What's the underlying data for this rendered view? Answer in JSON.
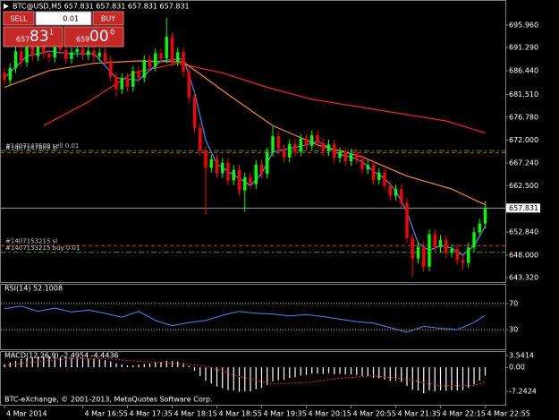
{
  "trade_panel": {
    "sell": "SELL",
    "lot": "0.01",
    "buy": "BUY",
    "sell_big": "657",
    "sell_main": "83",
    "sell_sup": "1",
    "buy_big": "659",
    "buy_main": "00",
    "buy_sup": "0"
  },
  "footer": "BTC-eXchange, © 2001-2013, MetaQuotes Software Corp.",
  "chart_data": [
    {
      "type": "candlestick",
      "title": "BTC@USD,M5  657.831 657.831 657.831 657.831",
      "categories": [
        "4 Mar 2014",
        null,
        null,
        null,
        null,
        null,
        null,
        null,
        null,
        null,
        null,
        null,
        null,
        null,
        "4 Mar 16:55",
        null,
        null,
        null,
        null,
        null,
        null,
        null,
        "4 Mar 17:35",
        null,
        null,
        null,
        null,
        null,
        null,
        null,
        "4 Mar 18:15",
        null,
        null,
        null,
        null,
        null,
        null,
        null,
        "4 Mar 18:55",
        null,
        null,
        null,
        null,
        null,
        null,
        null,
        "4 Mar 19:35",
        null,
        null,
        null,
        null,
        null,
        null,
        null,
        "4 Mar 20:15",
        null,
        null,
        null,
        null,
        null,
        null,
        null,
        "4 Mar 20:55",
        null,
        null,
        null,
        null,
        null,
        null,
        null,
        "4 Mar 21:35",
        null,
        null,
        null,
        null,
        null,
        null,
        null,
        "4 Mar 22:15",
        null,
        null,
        null,
        null,
        null,
        null,
        null,
        "4 Mar 22:55"
      ],
      "open": [
        686.0,
        684.5,
        687.0,
        690.5,
        688.2,
        691.8,
        689.5,
        692.6,
        690.0,
        689.2,
        691.5,
        690.8,
        688.9,
        690.3,
        691.0,
        689.7,
        690.6,
        689.4,
        690.2,
        688.5,
        685.2,
        682.6,
        684.9,
        683.1,
        686.4,
        685.0,
        688.7,
        687.3,
        690.1,
        689.0,
        693.5,
        688.4,
        690.3,
        686.2,
        680.9,
        674.5,
        669.8,
        666.2,
        668.0,
        665.1,
        667.3,
        663.6,
        665.8,
        661.5,
        664.2,
        662.8,
        666.9,
        665.0,
        669.5,
        672.8,
        670.1,
        668.4,
        671.2,
        669.6,
        672.3,
        670.8,
        673.0,
        671.4,
        669.7,
        671.1,
        668.3,
        669.5,
        667.6,
        669.2,
        668.0,
        665.9,
        666.8,
        663.7,
        665.2,
        662.5,
        660.4,
        661.8,
        658.9,
        651.6,
        647.3,
        649.8,
        645.6,
        652.4,
        649.7,
        651.2,
        648.5,
        649.3,
        647.0,
        646.4,
        649.6,
        652.8,
        654.6
      ],
      "high": [
        687.0,
        688.0,
        691.5,
        691.5,
        692.8,
        692.8,
        693.6,
        693.6,
        691.0,
        692.5,
        692.5,
        691.8,
        691.3,
        692.0,
        692.0,
        691.6,
        691.6,
        691.2,
        691.2,
        689.5,
        686.2,
        685.9,
        685.9,
        687.4,
        687.4,
        689.7,
        689.7,
        691.1,
        691.1,
        697.5,
        694.5,
        691.3,
        691.3,
        687.2,
        681.9,
        675.5,
        670.8,
        669.0,
        669.0,
        668.3,
        668.3,
        666.8,
        666.8,
        665.2,
        665.2,
        667.9,
        667.9,
        670.5,
        674.8,
        673.8,
        671.1,
        672.2,
        672.2,
        673.3,
        673.3,
        674.0,
        674.0,
        672.4,
        672.1,
        672.1,
        670.5,
        670.5,
        670.2,
        670.2,
        669.0,
        667.8,
        667.8,
        666.2,
        666.2,
        663.5,
        662.8,
        662.8,
        659.9,
        652.6,
        650.8,
        650.8,
        653.4,
        653.4,
        652.2,
        652.2,
        650.3,
        650.3,
        648.0,
        650.6,
        653.8,
        655.6,
        659.2
      ],
      "low": [
        683.5,
        683.5,
        686.0,
        687.2,
        687.2,
        688.5,
        688.5,
        689.0,
        688.2,
        688.2,
        689.8,
        687.9,
        687.9,
        689.3,
        688.7,
        688.7,
        688.4,
        688.4,
        687.5,
        684.2,
        681.0,
        681.6,
        682.1,
        682.1,
        684.0,
        684.0,
        686.3,
        686.3,
        688.0,
        688.0,
        687.4,
        687.4,
        685.2,
        679.9,
        673.5,
        668.8,
        656.5,
        665.2,
        664.1,
        664.1,
        662.6,
        662.6,
        660.5,
        657.0,
        661.8,
        661.8,
        664.0,
        664.0,
        668.5,
        669.1,
        667.4,
        667.4,
        668.6,
        668.6,
        669.8,
        669.8,
        670.4,
        668.7,
        668.7,
        667.3,
        667.3,
        666.6,
        666.6,
        667.0,
        664.9,
        664.9,
        662.7,
        662.7,
        661.5,
        659.4,
        659.4,
        657.9,
        650.6,
        643.5,
        646.3,
        644.6,
        644.6,
        648.7,
        648.7,
        647.5,
        647.5,
        646.0,
        645.0,
        645.4,
        648.6,
        651.8,
        653.6
      ],
      "close": [
        684.5,
        687.0,
        690.5,
        688.2,
        691.8,
        689.5,
        692.6,
        690.0,
        689.2,
        691.5,
        690.8,
        688.9,
        690.3,
        691.0,
        689.7,
        690.6,
        689.4,
        690.2,
        688.5,
        685.2,
        682.6,
        684.9,
        683.1,
        686.4,
        685.0,
        688.7,
        687.3,
        690.1,
        689.0,
        693.5,
        688.4,
        690.3,
        686.2,
        680.9,
        674.5,
        669.8,
        666.2,
        668.0,
        665.1,
        667.3,
        663.6,
        665.8,
        661.5,
        664.2,
        662.8,
        666.9,
        665.0,
        669.5,
        672.8,
        670.1,
        668.4,
        671.2,
        669.6,
        672.3,
        670.8,
        673.0,
        671.4,
        669.7,
        671.1,
        668.3,
        669.5,
        667.6,
        669.2,
        668.0,
        665.9,
        666.8,
        663.7,
        665.2,
        662.5,
        660.4,
        661.8,
        658.9,
        651.6,
        647.3,
        649.8,
        645.6,
        652.4,
        649.7,
        651.2,
        648.5,
        649.3,
        647.0,
        646.4,
        649.6,
        652.8,
        654.6,
        657.831
      ],
      "up_color": "#00ff00",
      "down_color": "#ff0000",
      "lines": [
        {
          "color": "#ff2020",
          "x": [
            7,
            15,
            23,
            31,
            39,
            47,
            55,
            63,
            71,
            79,
            86
          ],
          "values": [
            675.0,
            680.0,
            686.0,
            688.0,
            686.0,
            683.0,
            680.5,
            679.0,
            677.5,
            676.0,
            673.5
          ]
        },
        {
          "color": "#ff8c1a",
          "x": [
            0,
            8,
            16,
            24,
            32,
            40,
            48,
            56,
            64,
            72,
            80,
            86
          ],
          "values": [
            683.0,
            686.5,
            688.0,
            688.5,
            688.3,
            681.5,
            675.0,
            671.0,
            668.5,
            664.5,
            661.8,
            658.5
          ]
        },
        {
          "color": "#3c8cff",
          "x": [
            0,
            4,
            8,
            12,
            16,
            20,
            24,
            28,
            32,
            34,
            36,
            38,
            40,
            42,
            44,
            46,
            48,
            50,
            52,
            54,
            56,
            58,
            60,
            62,
            64,
            66,
            68,
            70,
            72,
            74,
            76,
            78,
            80,
            82,
            84,
            86
          ],
          "values": [
            685,
            689.5,
            690.5,
            690.0,
            690.0,
            685.0,
            684.5,
            688.5,
            689.0,
            682.0,
            672.0,
            667.0,
            665.5,
            664.0,
            662.5,
            665.0,
            669.5,
            670.0,
            670.5,
            671.0,
            671.8,
            670.5,
            669.0,
            668.5,
            667.5,
            665.5,
            664.0,
            661.5,
            657.0,
            650.5,
            649.0,
            650.0,
            649.5,
            648.0,
            650.0,
            654.0
          ]
        }
      ],
      "levels": [
        {
          "label": "#1407147609 sell 0.01",
          "value": 669.8,
          "color": "#00c000",
          "dash": "6 3 2 3"
        },
        {
          "label": "#1407147609 sl",
          "value": 669.4,
          "color": "#ff2020",
          "dash": "4 3"
        },
        {
          "label": "#1407153215 sl",
          "value": 650.0,
          "color": "#ff2020",
          "dash": "4 3"
        },
        {
          "label": "#1407153215 buy 0.01",
          "value": 648.6,
          "color": "#00c000",
          "dash": "6 3 2 3"
        }
      ],
      "current": {
        "value": 657.831,
        "label": "657.831"
      },
      "xlim": [
        -0.8,
        89.6
      ],
      "ylim": [
        642.4,
        701.2
      ],
      "yticks": [
        {
          "value": 695.96,
          "label": "695.960"
        },
        {
          "value": 691.29,
          "label": "691.290"
        },
        {
          "value": 686.44,
          "label": "686.440"
        },
        {
          "value": 681.51,
          "label": "681.510"
        },
        {
          "value": 676.78,
          "label": "676.780"
        },
        {
          "value": 672.0,
          "label": "672.000"
        },
        {
          "value": 667.24,
          "label": "667.240"
        },
        {
          "value": 662.5,
          "label": "662.500"
        },
        {
          "value": 652.84,
          "label": "652.840"
        },
        {
          "value": 648.0,
          "label": "648.000"
        },
        {
          "value": 643.32,
          "label": "643.320"
        }
      ]
    },
    {
      "type": "line",
      "title": "RSI(14) 52.1008",
      "color": "#3c8cff",
      "x": [
        0,
        3,
        6,
        9,
        12,
        15,
        18,
        21,
        24,
        27,
        30,
        33,
        36,
        39,
        42,
        45,
        48,
        51,
        54,
        57,
        60,
        63,
        66,
        69,
        72,
        75,
        78,
        81,
        84,
        86
      ],
      "values": [
        62,
        66,
        58,
        63,
        57,
        60,
        55,
        49,
        58,
        44,
        36,
        41,
        44,
        52,
        58,
        55,
        54,
        51,
        53,
        50,
        46,
        42,
        40,
        33,
        26,
        35,
        32,
        30,
        41,
        52.1008
      ],
      "xlim": [
        -0.8,
        89.6
      ],
      "ylim": [
        0,
        100
      ],
      "yticks": [
        70,
        30
      ],
      "grid": true
    },
    {
      "type": "bar",
      "title": "MACD(12,26,9) -2.4954 -4.4436",
      "color": "#ffffff",
      "values": [
        1.0,
        1.5,
        2.0,
        2.5,
        2.8,
        3.0,
        3.2,
        3.3,
        3.3,
        3.2,
        3.1,
        3.0,
        2.9,
        2.8,
        2.7,
        2.6,
        2.5,
        2.4,
        2.2,
        1.8,
        1.2,
        0.9,
        0.6,
        0.6,
        0.8,
        1.0,
        1.2,
        1.5,
        1.6,
        2.0,
        1.9,
        1.8,
        1.3,
        0.4,
        -1.0,
        -2.6,
        -4.0,
        -4.9,
        -5.8,
        -6.3,
        -6.9,
        -7.0,
        -7.4,
        -7.2,
        -7.3,
        -6.6,
        -6.2,
        -5.3,
        -4.2,
        -3.9,
        -3.8,
        -3.2,
        -3.0,
        -2.5,
        -2.3,
        -1.9,
        -1.9,
        -2.0,
        -1.8,
        -2.1,
        -2.0,
        -2.2,
        -2.1,
        -2.3,
        -2.6,
        -2.7,
        -3.2,
        -3.3,
        -3.7,
        -4.1,
        -4.0,
        -4.4,
        -5.6,
        -6.8,
        -7.0,
        -7.8,
        -7.0,
        -7.2,
        -6.9,
        -7.1,
        -6.9,
        -7.0,
        -6.9,
        -6.2,
        -5.2,
        -4.0,
        -2.4954
      ],
      "signal": {
        "color": "#ff2020",
        "x": [
          0,
          6,
          12,
          18,
          24,
          30,
          36,
          42,
          48,
          54,
          60,
          66,
          72,
          78,
          84,
          86
        ],
        "values": [
          0.5,
          1.8,
          2.6,
          2.6,
          1.8,
          1.3,
          0.4,
          -2.8,
          -5.0,
          -4.6,
          -3.3,
          -2.6,
          -3.6,
          -5.6,
          -5.5,
          -4.4436
        ]
      },
      "xlim": [
        -0.8,
        89.6
      ],
      "ylim": [
        -11.3,
        4.9
      ],
      "yticks": [
        3.5414,
        {
          "value": 0,
          "label": "0.00"
        },
        -7.2424
      ]
    }
  ]
}
